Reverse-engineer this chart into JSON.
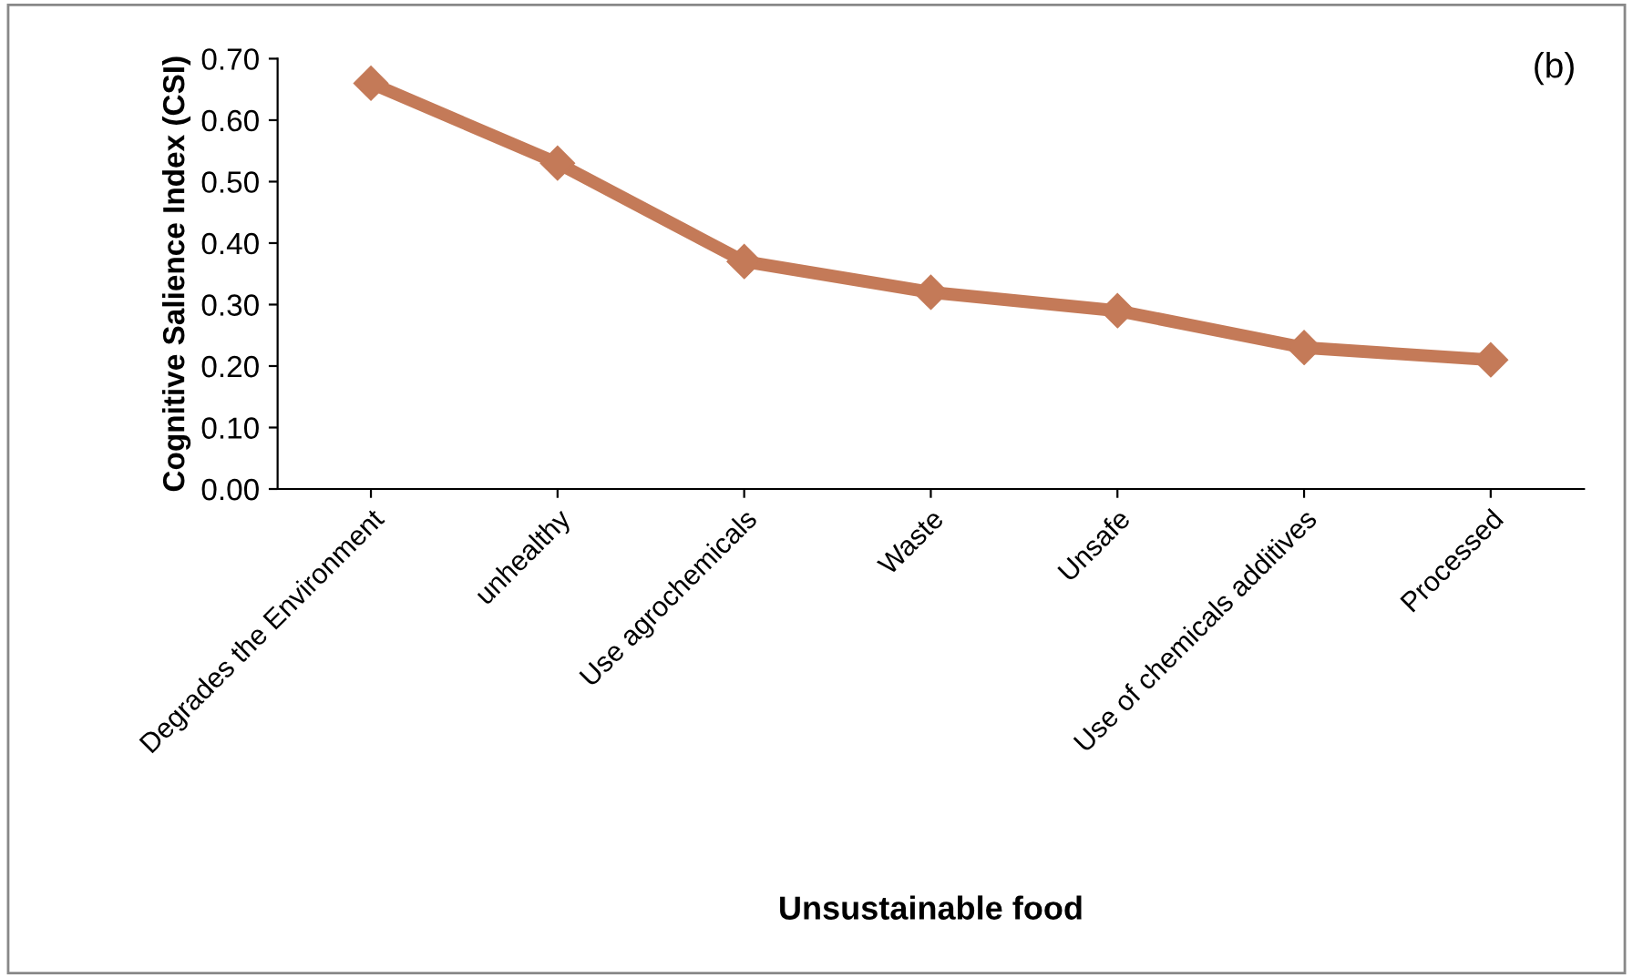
{
  "chart_data": {
    "type": "line",
    "xlabel": "Unsustainable food",
    "ylabel": "Cognitive Salience Index (CSI)",
    "annotations": [
      "(b)"
    ],
    "categories": [
      "Degrades the Environment",
      "unhealthy",
      "Use agrochemicals",
      "Waste",
      "Unsafe",
      "Use of chemicals additives",
      "Processed"
    ],
    "series": [
      {
        "color": "#c47a58",
        "values": [
          0.66,
          0.53,
          0.37,
          0.32,
          0.29,
          0.23,
          0.21
        ]
      }
    ],
    "ylim": [
      0,
      0.7
    ],
    "yticks": [
      {
        "value": 0,
        "label": "0.00"
      },
      {
        "value": 0.1,
        "label": "0.10"
      },
      {
        "value": 0.2,
        "label": "0.20"
      },
      {
        "value": 0.3,
        "label": "0.30"
      },
      {
        "value": 0.4,
        "label": "0.40"
      },
      {
        "value": 0.5,
        "label": "0.50"
      },
      {
        "value": 0.6,
        "label": "0.60"
      },
      {
        "value": 0.7,
        "label": "0.70"
      }
    ],
    "grid": false,
    "legend": false,
    "marker": "diamond",
    "line_style": "solid"
  }
}
